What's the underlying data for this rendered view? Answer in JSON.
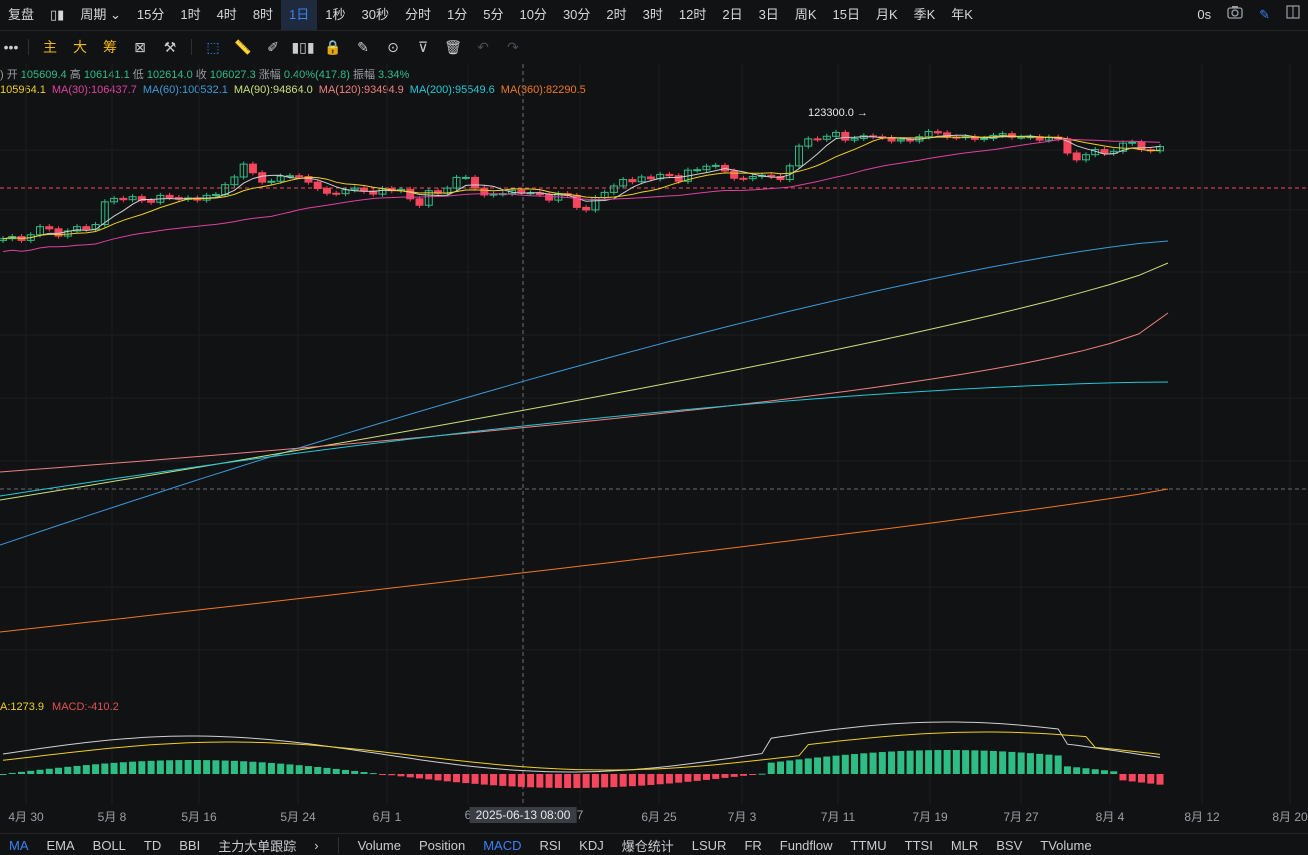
{
  "topbar": {
    "restore": "复盘",
    "period_label": "周期",
    "intervals": [
      "15分",
      "1时",
      "4时",
      "8时",
      "1日",
      "1秒",
      "30秒",
      "分时",
      "1分",
      "5分",
      "10分",
      "30分",
      "2时",
      "3时",
      "12时",
      "2日",
      "3日",
      "周K",
      "15日",
      "月K",
      "季K",
      "年K"
    ],
    "active_interval": "1日",
    "latency": "0s"
  },
  "toolbar": {
    "labels": [
      "主",
      "大",
      "筹"
    ]
  },
  "ohlc": {
    "open_label": "开",
    "open": "105609.4",
    "high_label": "高",
    "high": "106141.1",
    "low_label": "低",
    "low": "102614.0",
    "close_label": "收",
    "close": "106027.3",
    "change_label": "涨幅",
    "change": "0.40%(417.8)",
    "amp_label": "振幅",
    "amp": "3.34%"
  },
  "ma_legend": [
    {
      "text": "105964.1",
      "color": "#f0d020"
    },
    {
      "text": "MA(30):106437.7",
      "color": "#e040a0"
    },
    {
      "text": "MA(60):100532.1",
      "color": "#3a9bd9"
    },
    {
      "text": "MA(90):94864.0",
      "color": "#c8e07a"
    },
    {
      "text": "MA(120):93494.9",
      "color": "#f08080"
    },
    {
      "text": "MA(200):95549.6",
      "color": "#22c8d8"
    },
    {
      "text": "MA(360):82290.5",
      "color": "#f07820"
    }
  ],
  "macd_legend": [
    {
      "text": "A:1273.9",
      "color": "#f0d020"
    },
    {
      "text": "MACD:-410.2",
      "color": "#e05050"
    }
  ],
  "chart_data": {
    "type": "candlestick",
    "high_marker": "123300.0",
    "colors": {
      "up": "#2ebd85",
      "down": "#f6465d",
      "ma5": "#d0d0d0",
      "ma10": "#f0d020",
      "ma30": "#e040a0",
      "ma60": "#3a9bd9",
      "ma90": "#c8e07a",
      "ma120": "#f08080",
      "ma200": "#22c8d8",
      "ma360": "#f07820"
    }
  },
  "xaxis": {
    "labels": [
      "4月 30",
      "5月 8",
      "5月 16",
      "5月 24",
      "6月 1",
      "6",
      "7",
      "6月 25",
      "7月 3",
      "7月 11",
      "7月 19",
      "7月 27",
      "8月 4",
      "8月 12",
      "8月 20"
    ],
    "crosshair_label": "2025-06-13 08:00"
  },
  "bottombar": {
    "left": [
      "MA",
      "EMA",
      "BOLL",
      "TD",
      "BBI",
      "主力大单跟踪"
    ],
    "right": [
      "Volume",
      "Position",
      "MACD",
      "RSI",
      "KDJ",
      "爆仓统计",
      "LSUR",
      "FR",
      "Fundflow",
      "TTMU",
      "TTSI",
      "MLR",
      "BSV",
      "TVolume"
    ],
    "active_left": "MA",
    "active_right": "MACD"
  }
}
